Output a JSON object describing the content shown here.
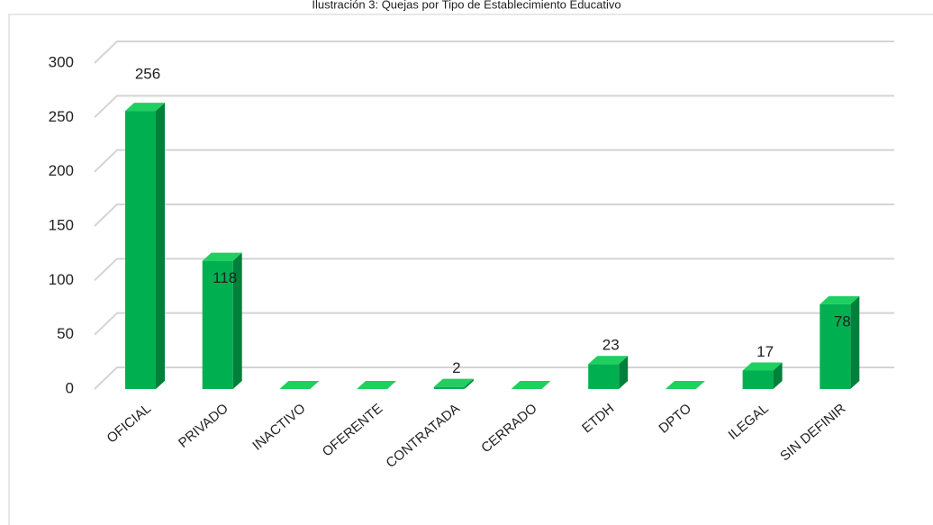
{
  "chart_data": {
    "type": "bar",
    "title": "Ilustración 3: Quejas por Tipo de Establecimiento Educativo",
    "categories": [
      "OFICIAL",
      "PRIVADO",
      "INACTIVO",
      "OFERENTE",
      "CONTRATADA",
      "CERRADO",
      "ETDH",
      "DPTO",
      "ILEGAL",
      "SIN DEFINIR"
    ],
    "values": [
      256,
      118,
      0,
      0,
      2,
      0,
      23,
      0,
      17,
      78
    ],
    "color": "#00b050",
    "ylim": [
      0,
      300
    ],
    "yticks": [
      0,
      50,
      100,
      150,
      200,
      250,
      300
    ],
    "grid": true
  }
}
